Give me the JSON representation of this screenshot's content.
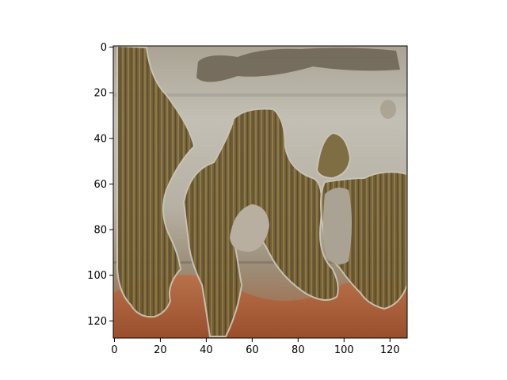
{
  "chart_data": {
    "type": "heatmap",
    "title": "",
    "xlabel": "",
    "ylabel": "",
    "xlim": [
      -0.5,
      127.5
    ],
    "ylim": [
      127.5,
      -0.5
    ],
    "y_inverted": true,
    "grid": false,
    "x_ticks": [
      0,
      20,
      40,
      60,
      80,
      100,
      120
    ],
    "y_ticks": [
      0,
      20,
      40,
      60,
      80,
      100,
      120
    ],
    "x_tick_labels": [
      "0",
      "20",
      "40",
      "60",
      "80",
      "100",
      "120"
    ],
    "y_tick_labels": [
      "0",
      "20",
      "40",
      "60",
      "80",
      "100",
      "120"
    ],
    "image_size": [
      128,
      128
    ],
    "image_description_colors": {
      "sky": "#b8b3a8",
      "cloud": "#6f6656",
      "rock": "#6e5a36",
      "rock_light": "#8e7a45",
      "ground": "#b0643a"
    }
  }
}
